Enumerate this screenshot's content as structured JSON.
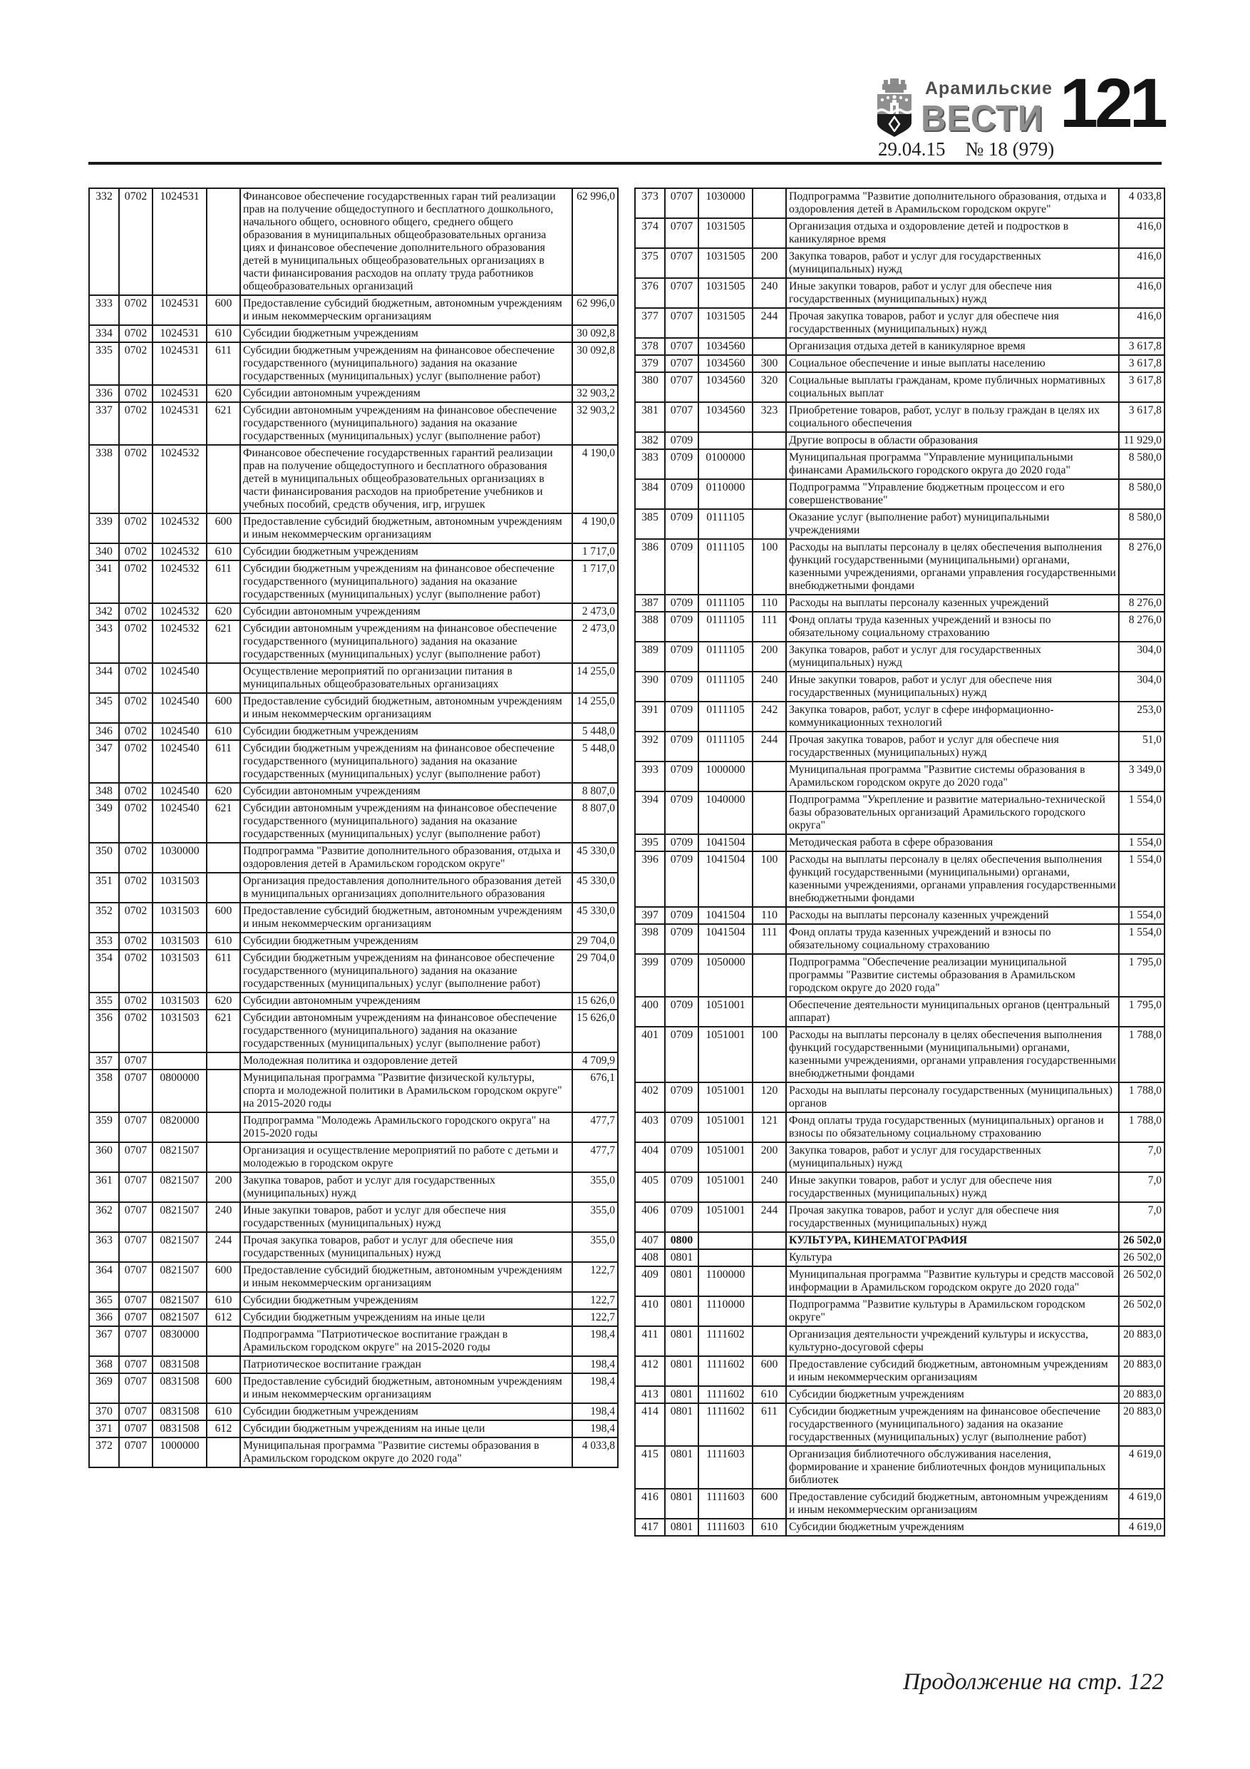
{
  "header": {
    "newspaper_title_top": "Арамильские",
    "newspaper_title_main": "ВЕСТИ",
    "page_number": "121",
    "issue_date": "29.04.15",
    "issue_number": "№ 18 (979)"
  },
  "footer": {
    "continuation_note": "Продолжение на стр. 122"
  },
  "tables": {
    "bold_rows": [
      "407"
    ],
    "left": {
      "rows": [
        [
          "332",
          "0702",
          "1024531",
          "",
          "Финансовое обеспечение государственных гаран тий реализации прав на получение общедоступного и бесплатного дошкольного, начального общего, основного общего, среднего общего образования в муниципальных общеобразовательных организа циях и финансовое обеспечение дополнительного образования детей в муниципальных общеобразовательных организациях в части финансирования расходов на оплату труда  работников общеобразовательных организаций",
          "62 996,0"
        ],
        [
          "333",
          "0702",
          "1024531",
          "600",
          "Предоставление субсидий бюджетным, автономным учреждениям и иным некоммерческим организациям",
          "62 996,0"
        ],
        [
          "334",
          "0702",
          "1024531",
          "610",
          "Субсидии бюджетным учреждениям",
          "30 092,8"
        ],
        [
          "335",
          "0702",
          "1024531",
          "611",
          "Субсидии бюджетным учреждениям на финансовое обеспечение государственного (муниципального) задания на оказание государственных (муниципальных) услуг (выполнение работ)",
          "30 092,8"
        ],
        [
          "336",
          "0702",
          "1024531",
          "620",
          "Субсидии автономным учреждениям",
          "32 903,2"
        ],
        [
          "337",
          "0702",
          "1024531",
          "621",
          "Субсидии автономным учреждениям на финансовое обеспечение государственного (муниципального) задания на оказание государственных (муниципальных) услуг (выполнение работ)",
          "32 903,2"
        ],
        [
          "338",
          "0702",
          "1024532",
          "",
          "Финансовое обеспечение государственных гарантий реализации прав на получение общедоступного и бесплатного образования детей в муниципальных общеобразовательных организациях в части финансирования расходов на приобретение учебников и учебных пособий, средств обучения, игр, игрушек",
          "4 190,0"
        ],
        [
          "339",
          "0702",
          "1024532",
          "600",
          "Предоставление субсидий бюджетным, автономным учреждениям и иным некоммерческим организациям",
          "4 190,0"
        ],
        [
          "340",
          "0702",
          "1024532",
          "610",
          "Субсидии бюджетным учреждениям",
          "1 717,0"
        ],
        [
          "341",
          "0702",
          "1024532",
          "611",
          "Субсидии бюджетным учреждениям на финансовое обеспечение государственного (муниципального) задания на оказание государственных (муниципальных) услуг (выполнение работ)",
          "1 717,0"
        ],
        [
          "342",
          "0702",
          "1024532",
          "620",
          "Субсидии автономным учреждениям",
          "2 473,0"
        ],
        [
          "343",
          "0702",
          "1024532",
          "621",
          "Субсидии автономным учреждениям на финансовое обеспечение государственного (муниципального) задания на оказание государственных (муниципальных) услуг (выполнение работ)",
          "2 473,0"
        ],
        [
          "344",
          "0702",
          "1024540",
          "",
          "Осуществление мероприятий по организации питания в муниципальных общеобразовательных организациях",
          "14 255,0"
        ],
        [
          "345",
          "0702",
          "1024540",
          "600",
          "Предоставление субсидий бюджетным, автономным учреждениям и иным некоммерческим организациям",
          "14 255,0"
        ],
        [
          "346",
          "0702",
          "1024540",
          "610",
          "Субсидии бюджетным учреждениям",
          "5 448,0"
        ],
        [
          "347",
          "0702",
          "1024540",
          "611",
          "Субсидии бюджетным учреждениям на финансовое обеспечение государственного (муниципального) задания на оказание государственных (муниципальных) услуг (выполнение работ)",
          "5 448,0"
        ],
        [
          "348",
          "0702",
          "1024540",
          "620",
          "Субсидии автономным учреждениям",
          "8 807,0"
        ],
        [
          "349",
          "0702",
          "1024540",
          "621",
          "Субсидии автономным учреждениям на финансовое обеспечение государственного (муниципального) задания на оказание государственных (муниципальных) услуг (выполнение работ)",
          "8 807,0"
        ],
        [
          "350",
          "0702",
          "1030000",
          "",
          "Подпрограмма \"Развитие дополнительного образования, отдыха и оздоровления детей в Арамильском городском округе\"",
          "45 330,0"
        ],
        [
          "351",
          "0702",
          "1031503",
          "",
          "Организация предоставления дополнительного образования детей в муниципальных организациях дополнительного образования",
          "45 330,0"
        ],
        [
          "352",
          "0702",
          "1031503",
          "600",
          "Предоставление субсидий бюджетным, автономным учреждениям и иным некоммерческим организациям",
          "45 330,0"
        ],
        [
          "353",
          "0702",
          "1031503",
          "610",
          "Субсидии бюджетным учреждениям",
          "29 704,0"
        ],
        [
          "354",
          "0702",
          "1031503",
          "611",
          "Субсидии бюджетным учреждениям на финансовое обеспечение государственного (муниципального) задания на оказание государственных (муниципальных) услуг (выполнение работ)",
          "29 704,0"
        ],
        [
          "355",
          "0702",
          "1031503",
          "620",
          "Субсидии автономным учреждениям",
          "15 626,0"
        ],
        [
          "356",
          "0702",
          "1031503",
          "621",
          "Субсидии автономным учреждениям на финансовое обеспечение государственного (муниципального) задания на оказание государственных (муниципальных) услуг (выполнение работ)",
          "15 626,0"
        ],
        [
          "357",
          "0707",
          "",
          "",
          "Молодежная политика и оздоровление детей",
          "4 709,9"
        ],
        [
          "358",
          "0707",
          "0800000",
          "",
          "Муниципальная программа \"Развитие физической культуры, спорта и молодежной политики в Арамильском городском округе\" на 2015-2020 годы",
          "676,1"
        ],
        [
          "359",
          "0707",
          "0820000",
          "",
          "Подпрограмма \"Молодежь Арамильского городского округа\" на 2015-2020 годы",
          "477,7"
        ],
        [
          "360",
          "0707",
          "0821507",
          "",
          "Организация и осуществление мероприятий по работе с детьми и молодежью в городском округе",
          "477,7"
        ],
        [
          "361",
          "0707",
          "0821507",
          "200",
          "Закупка товаров, работ и услуг для государственных (муниципальных) нужд",
          "355,0"
        ],
        [
          "362",
          "0707",
          "0821507",
          "240",
          "Иные закупки товаров, работ и услуг для обеспече ния государственных (муниципальных) нужд",
          "355,0"
        ],
        [
          "363",
          "0707",
          "0821507",
          "244",
          "Прочая закупка товаров, работ и услуг для обеспече ния государственных  (муниципальных) нужд",
          "355,0"
        ],
        [
          "364",
          "0707",
          "0821507",
          "600",
          "Предоставление субсидий бюджетным, автономным учреждениям и иным некоммерческим организациям",
          "122,7"
        ],
        [
          "365",
          "0707",
          "0821507",
          "610",
          "Субсидии бюджетным учреждениям",
          "122,7"
        ],
        [
          "366",
          "0707",
          "0821507",
          "612",
          "Субсидии бюджетным учреждениям на иные цели",
          "122,7"
        ],
        [
          "367",
          "0707",
          "0830000",
          "",
          "Подпрограмма \"Патриотическое воспитание граждан в Арамильском городском округе\" на 2015-2020 годы",
          "198,4"
        ],
        [
          "368",
          "0707",
          "0831508",
          "",
          "Патриотическое воспитание граждан",
          "198,4"
        ],
        [
          "369",
          "0707",
          "0831508",
          "600",
          "Предоставление субсидий бюджетным, автономным учреждениям и иным некоммерческим организациям",
          "198,4"
        ],
        [
          "370",
          "0707",
          "0831508",
          "610",
          "Субсидии бюджетным учреждениям",
          "198,4"
        ],
        [
          "371",
          "0707",
          "0831508",
          "612",
          "Субсидии бюджетным учреждениям на иные цели",
          "198,4"
        ],
        [
          "372",
          "0707",
          "1000000",
          "",
          "Муниципальная программа \"Развитие системы образования в Арамильском городском округе до 2020 года\"",
          "4 033,8"
        ]
      ]
    },
    "right": {
      "rows": [
        [
          "373",
          "0707",
          "1030000",
          "",
          "Подпрограмма \"Развитие дополнительного образования, отдыха и оздоровления детей в Арамильском городском округе\"",
          "4 033,8"
        ],
        [
          "374",
          "0707",
          "1031505",
          "",
          "Организация отдыха и оздоровление детей и подростков в каникулярное время",
          "416,0"
        ],
        [
          "375",
          "0707",
          "1031505",
          "200",
          "Закупка товаров, работ и услуг для государственных (муниципальных) нужд",
          "416,0"
        ],
        [
          "376",
          "0707",
          "1031505",
          "240",
          "Иные закупки товаров, работ и услуг для обеспече ния государственных (муниципальных) нужд",
          "416,0"
        ],
        [
          "377",
          "0707",
          "1031505",
          "244",
          "Прочая закупка товаров, работ и услуг для обеспече ния государственных  (муниципальных) нужд",
          "416,0"
        ],
        [
          "378",
          "0707",
          "1034560",
          "",
          "Организация отдыха детей в каникулярное время",
          "3 617,8"
        ],
        [
          "379",
          "0707",
          "1034560",
          "300",
          "Социальное обеспечение и иные выплаты населению",
          "3 617,8"
        ],
        [
          "380",
          "0707",
          "1034560",
          "320",
          "Социальные выплаты гражданам, кроме публичных нормативных социальных выплат",
          "3 617,8"
        ],
        [
          "381",
          "0707",
          "1034560",
          "323",
          "Приобретение товаров, работ, услуг в пользу граждан в целях их социального обеспечения",
          "3 617,8"
        ],
        [
          "382",
          "0709",
          "",
          "",
          "Другие вопросы в области образования",
          "11 929,0"
        ],
        [
          "383",
          "0709",
          "0100000",
          "",
          "Муниципальная программа \"Управление муниципальными финансами Арамильского городского округа до 2020 года\"",
          "8 580,0"
        ],
        [
          "384",
          "0709",
          "0110000",
          "",
          "Подпрограмма \"Управление бюджетным процессом и его совершенствование\"",
          "8 580,0"
        ],
        [
          "385",
          "0709",
          "0111105",
          "",
          "Оказание услуг (выполнение работ) муниципальными учреждениями",
          "8 580,0"
        ],
        [
          "386",
          "0709",
          "0111105",
          "100",
          "Расходы на выплаты персоналу в целях обеспечения выполнения функций государственными (муниципальными) органами, казенными учреждениями, органами управления государственными внебюджетными фондами",
          "8 276,0"
        ],
        [
          "387",
          "0709",
          "0111105",
          "110",
          "Расходы на выплаты персоналу казенных учреждений",
          "8 276,0"
        ],
        [
          "388",
          "0709",
          "0111105",
          "111",
          "Фонд оплаты труда казенных учреждений и взносы по обязательному социальному страхованию",
          "8 276,0"
        ],
        [
          "389",
          "0709",
          "0111105",
          "200",
          "Закупка товаров, работ и услуг для государственных (муниципальных) нужд",
          "304,0"
        ],
        [
          "390",
          "0709",
          "0111105",
          "240",
          "Иные закупки товаров, работ и услуг для обеспече ния государственных (муниципальных) нужд",
          "304,0"
        ],
        [
          "391",
          "0709",
          "0111105",
          "242",
          "Закупка товаров, работ, услуг в сфере информационно-коммуникационных технологий",
          "253,0"
        ],
        [
          "392",
          "0709",
          "0111105",
          "244",
          "Прочая закупка товаров, работ и услуг для обеспече ния государственных  (муниципальных) нужд",
          "51,0"
        ],
        [
          "393",
          "0709",
          "1000000",
          "",
          "Муниципальная программа \"Развитие системы образования в Арамильском городском округе до 2020 года\"",
          "3 349,0"
        ],
        [
          "394",
          "0709",
          "1040000",
          "",
          "Подпрограмма \"Укрепление и развитие материально-технической базы образовательных организаций Арамильского городского округа\"",
          "1 554,0"
        ],
        [
          "395",
          "0709",
          "1041504",
          "",
          "Методическая работа в сфере образования",
          "1 554,0"
        ],
        [
          "396",
          "0709",
          "1041504",
          "100",
          "Расходы на выплаты персоналу в целях обеспечения выполнения функций государственными (муниципальными) органами, казенными учреждениями, органами управления государственными внебюджетными фондами",
          "1 554,0"
        ],
        [
          "397",
          "0709",
          "1041504",
          "110",
          "Расходы на выплаты персоналу казенных учреждений",
          "1 554,0"
        ],
        [
          "398",
          "0709",
          "1041504",
          "111",
          "Фонд оплаты труда казенных учреждений и взносы по обязательному социальному страхованию",
          "1 554,0"
        ],
        [
          "399",
          "0709",
          "1050000",
          "",
          "Подпрограмма \"Обеспечение реализации муниципальной программы \"Развитие системы образования в Арамильском городском округе до 2020 года\"",
          "1 795,0"
        ],
        [
          "400",
          "0709",
          "1051001",
          "",
          "Обеспечение деятельности муниципальных органов (центральный аппарат)",
          "1 795,0"
        ],
        [
          "401",
          "0709",
          "1051001",
          "100",
          "Расходы на выплаты персоналу в целях обеспечения выполнения функций государственными (муниципальными) органами, казенными учреждениями, органами управления государственными внебюджетными фондами",
          "1 788,0"
        ],
        [
          "402",
          "0709",
          "1051001",
          "120",
          "Расходы на выплаты персоналу государственных (муниципальных) органов",
          "1 788,0"
        ],
        [
          "403",
          "0709",
          "1051001",
          "121",
          "Фонд оплаты труда государственных (муниципальных) органов и  взносы по обязательному социальному страхованию",
          "1 788,0"
        ],
        [
          "404",
          "0709",
          "1051001",
          "200",
          "Закупка товаров, работ и услуг для государственных (муниципальных) нужд",
          "7,0"
        ],
        [
          "405",
          "0709",
          "1051001",
          "240",
          "Иные закупки товаров, работ и услуг для обеспече ния государственных (муниципальных) нужд",
          "7,0"
        ],
        [
          "406",
          "0709",
          "1051001",
          "244",
          "Прочая закупка товаров, работ и услуг для обеспече ния государственных  (муниципальных) нужд",
          "7,0"
        ],
        [
          "407",
          "0800",
          "",
          "",
          "КУЛЬТУРА, КИНЕМАТОГРАФИЯ",
          "26 502,0"
        ],
        [
          "408",
          "0801",
          "",
          "",
          "Культура",
          "26 502,0"
        ],
        [
          "409",
          "0801",
          "1100000",
          "",
          "Муниципальная программа \"Развитие культуры  и средств массовой информации в Арамильском городском округе до 2020 года\"",
          "26 502,0"
        ],
        [
          "410",
          "0801",
          "1110000",
          "",
          "Подпрограмма \"Развитие культуры в Арамильском городском округе\"",
          "26 502,0"
        ],
        [
          "411",
          "0801",
          "1111602",
          "",
          "Организация деятельности учреждений культуры и искусства, культурно-досуговой сферы",
          "20 883,0"
        ],
        [
          "412",
          "0801",
          "1111602",
          "600",
          "Предоставление субсидий бюджетным, автономным учреждениям и иным некоммерческим организациям",
          "20 883,0"
        ],
        [
          "413",
          "0801",
          "1111602",
          "610",
          "Субсидии бюджетным учреждениям",
          "20 883,0"
        ],
        [
          "414",
          "0801",
          "1111602",
          "611",
          "Субсидии бюджетным учреждениям на финансовое обеспечение государственного (муниципального) задания на оказание государственных (муниципальных) услуг (выполнение работ)",
          "20 883,0"
        ],
        [
          "415",
          "0801",
          "1111603",
          "",
          "Организация библиотечного обслуживания населения, формирование и хранение библиотечных фондов муниципальных библиотек",
          "4 619,0"
        ],
        [
          "416",
          "0801",
          "1111603",
          "600",
          "Предоставление субсидий бюджетным, автономным учреждениям и иным некоммерческим организациям",
          "4 619,0"
        ],
        [
          "417",
          "0801",
          "1111603",
          "610",
          "Субсидии бюджетным учреждениям",
          "4 619,0"
        ]
      ]
    }
  }
}
